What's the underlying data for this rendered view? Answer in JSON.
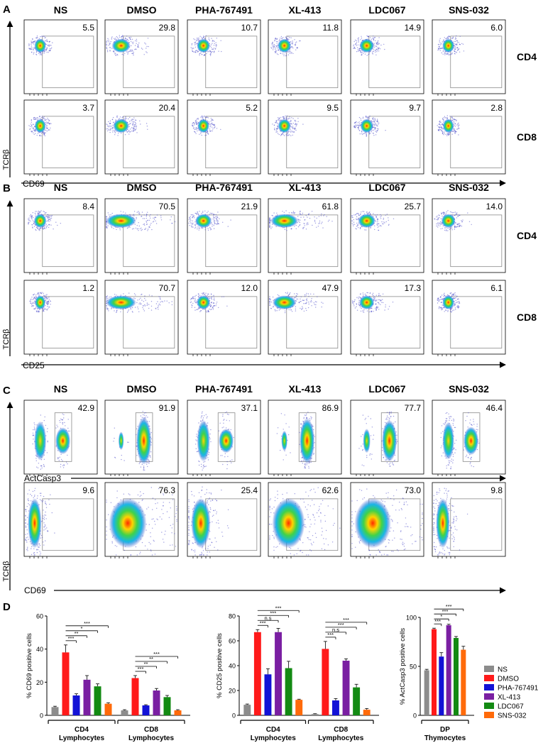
{
  "colors": {
    "ns": "#8c8c8c",
    "dmso": "#ff1a1a",
    "pha": "#1212d6",
    "xl": "#7a1fa2",
    "ldc": "#138a13",
    "sns": "#ff6a0a"
  },
  "panels": [
    {
      "label": "A",
      "x_marker": "CD69",
      "y_marker": "TCRβ",
      "headers": [
        "NS",
        "DMSO",
        "PHA-767491",
        "XL-413",
        "LDC067",
        "SNS-032"
      ],
      "row_labels": [
        "CD4",
        "CD8"
      ],
      "values": [
        [
          "5.5",
          "29.8",
          "10.7",
          "11.8",
          "14.9",
          "6.0"
        ],
        [
          "3.7",
          "20.4",
          "5.2",
          "9.5",
          "9.7",
          "2.8"
        ]
      ]
    },
    {
      "label": "B",
      "x_marker": "CD25",
      "y_marker": "TCRβ",
      "headers": [
        "NS",
        "DMSO",
        "PHA-767491",
        "XL-413",
        "LDC067",
        "SNS-032"
      ],
      "row_labels": [
        "CD4",
        "CD8"
      ],
      "values": [
        [
          "8.4",
          "70.5",
          "21.9",
          "61.8",
          "25.7",
          "14.0"
        ],
        [
          "1.2",
          "70.7",
          "12.0",
          "47.9",
          "17.3",
          "6.1"
        ]
      ]
    },
    {
      "label": "C",
      "x_marker": "ActCasp3",
      "y_marker": "TCRβ",
      "x_marker2": "CD69",
      "headers": [
        "NS",
        "DMSO",
        "PHA-767491",
        "XL-413",
        "LDC067",
        "SNS-032"
      ],
      "row_labels": [
        "",
        ""
      ],
      "values": [
        [
          "42.9",
          "91.9",
          "37.1",
          "86.9",
          "77.7",
          "46.4"
        ],
        [
          "9.6",
          "76.3",
          "25.4",
          "62.6",
          "73.0",
          "9.8"
        ]
      ]
    }
  ],
  "panel_d_label": "D",
  "chart_data": [
    {
      "type": "bar",
      "ylabel": "% CD69 positive cells",
      "ylim": [
        0,
        60
      ],
      "yticks": [
        "0",
        "20",
        "40",
        "60"
      ],
      "groups": [
        {
          "name": "CD4",
          "sub": "Lymphocytes",
          "values": [
            5,
            38,
            12,
            21.5,
            17.5,
            7
          ],
          "errors": [
            0.5,
            4.5,
            1,
            2.5,
            1.5,
            0.6
          ]
        },
        {
          "name": "CD8",
          "sub": "Lymphocytes",
          "values": [
            3,
            22.5,
            6,
            15,
            11,
            3
          ],
          "errors": [
            0.4,
            1.5,
            0.4,
            1.2,
            1,
            0.4
          ]
        }
      ],
      "sig": [
        [
          "***",
          "**",
          "*",
          "***"
        ],
        [
          "***",
          "**",
          "**",
          "***"
        ]
      ]
    },
    {
      "type": "bar",
      "ylabel": "% CD25 positive cells",
      "ylim": [
        0,
        80
      ],
      "yticks": [
        "0",
        "20",
        "40",
        "60",
        "80"
      ],
      "groups": [
        {
          "name": "CD4",
          "sub": "Lymphocytes",
          "values": [
            8.5,
            67,
            33,
            67,
            38,
            12.5
          ],
          "errors": [
            0.6,
            2,
            4.5,
            3,
            5.5,
            0.5
          ]
        },
        {
          "name": "CD8",
          "sub": "Lymphocytes",
          "values": [
            1,
            53.5,
            12,
            44,
            22.5,
            4.5
          ],
          "errors": [
            0.3,
            6,
            1.5,
            1.5,
            2.5,
            1
          ]
        }
      ],
      "sig": [
        [
          "***",
          "n.s",
          "***",
          "***"
        ],
        [
          "***",
          "n.s",
          "***",
          "***"
        ]
      ]
    },
    {
      "type": "bar",
      "ylabel": "% ActCasp3 positive cells",
      "ylim": [
        0,
        100
      ],
      "yticks": [
        "0",
        "50",
        "100"
      ],
      "groups": [
        {
          "name": "DP",
          "sub": "Thymocytes",
          "values": [
            46,
            88,
            60,
            92,
            79,
            67
          ],
          "errors": [
            1,
            1,
            4,
            1,
            1.5,
            3.5
          ]
        }
      ],
      "sig": [
        [
          "***",
          "*",
          "***",
          "***"
        ]
      ]
    }
  ],
  "legend": [
    "NS",
    "DMSO",
    "PHA-767491",
    "XL-413",
    "LDC067",
    "SNS-032"
  ]
}
